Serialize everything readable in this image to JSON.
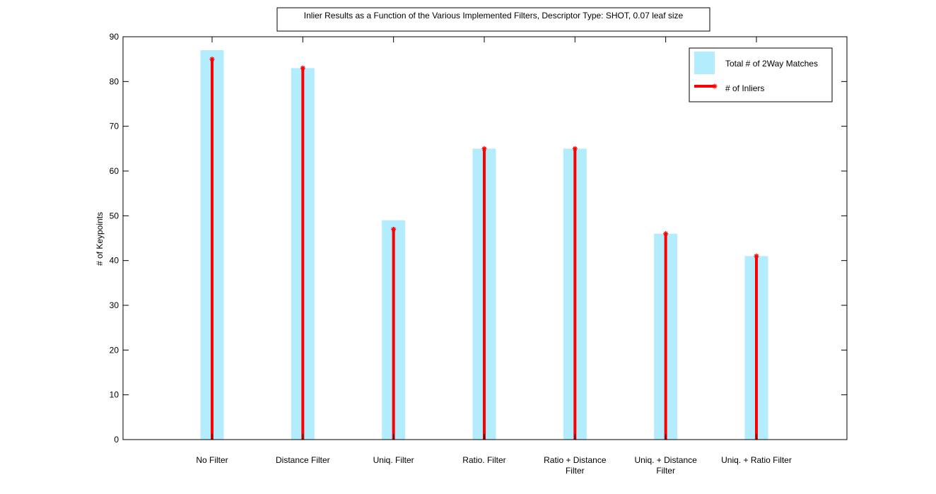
{
  "chart_data": {
    "type": "bar",
    "title": "Inlier Results as a Function of the Various Implemented Filters, Descriptor Type: SHOT, 0.07 leaf size",
    "xlabel": "",
    "ylabel": "# of Keypoints",
    "ylim": [
      0,
      90
    ],
    "yticks": [
      0,
      10,
      20,
      30,
      40,
      50,
      60,
      70,
      80,
      90
    ],
    "categories": [
      [
        "No Filter"
      ],
      [
        "Distance Filter"
      ],
      [
        "Uniq. Filter"
      ],
      [
        "Ratio. Filter"
      ],
      [
        "Ratio + Distance",
        "Filter"
      ],
      [
        "Uniq. + Distance",
        "Filter"
      ],
      [
        "Uniq. + Ratio Filter"
      ]
    ],
    "series": [
      {
        "name": "Total # of 2Way Matches",
        "kind": "bar",
        "color": "#b3ecfc",
        "values": [
          87,
          83,
          49,
          65,
          65,
          46,
          41
        ]
      },
      {
        "name": "# of Inliers",
        "kind": "stem",
        "color": "#ff0000",
        "values": [
          85,
          83,
          47,
          65,
          65,
          46,
          41
        ]
      }
    ],
    "legend_position": "top-right",
    "grid": false
  }
}
